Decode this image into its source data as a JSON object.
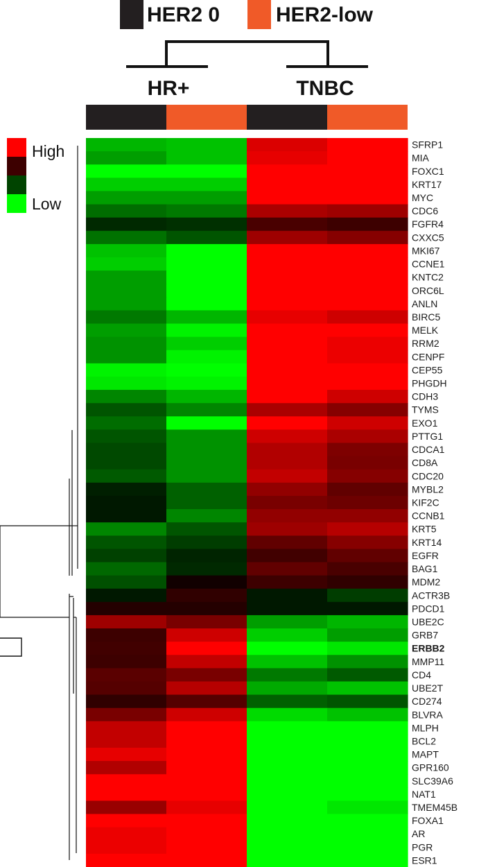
{
  "legend_top": {
    "items": [
      {
        "label": "HER2 0",
        "color": "#231f20"
      },
      {
        "label": "HER2-low",
        "color": "#f05a28"
      }
    ]
  },
  "group_labels": [
    "HR+",
    "TNBC"
  ],
  "color_key": {
    "high_label": "High",
    "low_label": "Low",
    "colors": [
      "#ff0000",
      "#3d0000",
      "#004400",
      "#00ff00"
    ]
  },
  "highlighted_gene": "ERBB2",
  "chart_data": {
    "type": "heatmap",
    "columns": [
      {
        "group": "HR+",
        "her2": "HER2 0"
      },
      {
        "group": "HR+",
        "her2": "HER2-low"
      },
      {
        "group": "TNBC",
        "her2": "HER2 0"
      },
      {
        "group": "TNBC",
        "her2": "HER2-low"
      }
    ],
    "rows": [
      "SFRP1",
      "MIA",
      "FOXC1",
      "KRT17",
      "MYC",
      "CDC6",
      "FGFR4",
      "CXXC5",
      "MKI67",
      "CCNE1",
      "KNTC2",
      "ORC6L",
      "ANLN",
      "BIRC5",
      "MELK",
      "RRM2",
      "CENPF",
      "CEP55",
      "PHGDH",
      "CDH3",
      "TYMS",
      "EXO1",
      "PTTG1",
      "CDCA1",
      "CD8A",
      "CDC20",
      "MYBL2",
      "KIF2C",
      "CCNB1",
      "KRT5",
      "KRT14",
      "EGFR",
      "BAG1",
      "MDM2",
      "ACTR3B",
      "PDCD1",
      "UBE2C",
      "GRB7",
      "ERBB2",
      "MMP11",
      "CD4",
      "UBE2T",
      "CD274",
      "BLVRA",
      "MLPH",
      "BCL2",
      "MAPT",
      "GPR160",
      "SLC39A6",
      "NAT1",
      "TMEM45B",
      "FOXA1",
      "AR",
      "PGR",
      "ESR1"
    ],
    "values": [
      [
        -0.7,
        -0.75,
        0.85,
        1
      ],
      [
        -0.6,
        -0.75,
        0.9,
        1
      ],
      [
        -1,
        -1,
        1,
        1
      ],
      [
        -0.8,
        -0.8,
        1,
        1
      ],
      [
        -0.6,
        -0.6,
        1,
        1
      ],
      [
        -0.4,
        -0.45,
        0.65,
        0.6
      ],
      [
        -0.12,
        -0.15,
        0.25,
        0.2
      ],
      [
        -0.42,
        -0.3,
        0.6,
        0.5
      ],
      [
        -0.75,
        -1,
        1,
        1
      ],
      [
        -0.8,
        -1,
        1,
        1
      ],
      [
        -0.6,
        -1,
        1,
        1
      ],
      [
        -0.6,
        -1,
        1,
        1
      ],
      [
        -0.6,
        -1,
        1,
        1
      ],
      [
        -0.45,
        -0.7,
        0.9,
        0.8
      ],
      [
        -0.6,
        -0.95,
        1,
        1
      ],
      [
        -0.55,
        -0.8,
        1,
        0.92
      ],
      [
        -0.55,
        -0.95,
        1,
        0.92
      ],
      [
        -0.95,
        -1,
        1,
        1
      ],
      [
        -0.9,
        -0.95,
        1,
        1
      ],
      [
        -0.5,
        -0.7,
        1,
        0.8
      ],
      [
        -0.3,
        -0.5,
        0.65,
        0.5
      ],
      [
        -0.4,
        -1,
        1,
        0.8
      ],
      [
        -0.3,
        -0.55,
        0.8,
        0.65
      ],
      [
        -0.25,
        -0.55,
        0.68,
        0.47
      ],
      [
        -0.25,
        -0.55,
        0.68,
        0.45
      ],
      [
        -0.32,
        -0.55,
        0.75,
        0.5
      ],
      [
        -0.08,
        -0.35,
        0.55,
        0.35
      ],
      [
        -0.05,
        -0.35,
        0.45,
        0.4
      ],
      [
        -0.05,
        -0.5,
        0.55,
        0.55
      ],
      [
        -0.5,
        -0.3,
        0.6,
        0.7
      ],
      [
        -0.3,
        -0.2,
        0.35,
        0.5
      ],
      [
        -0.22,
        -0.1,
        0.22,
        0.35
      ],
      [
        -0.38,
        -0.12,
        0.35,
        0.25
      ],
      [
        -0.28,
        0.02,
        0.2,
        0.15
      ],
      [
        -0.05,
        0.15,
        -0.05,
        -0.2
      ],
      [
        0.1,
        0.1,
        -0.05,
        -0.05
      ],
      [
        0.6,
        0.45,
        -0.6,
        -0.7
      ],
      [
        0.2,
        0.8,
        -0.8,
        -0.6
      ],
      [
        0.22,
        1,
        -1,
        -0.9
      ],
      [
        0.2,
        0.75,
        -0.75,
        -0.55
      ],
      [
        0.32,
        0.45,
        -0.45,
        -0.32
      ],
      [
        0.3,
        0.7,
        -0.65,
        -0.75
      ],
      [
        0.15,
        0.3,
        -0.35,
        -0.3
      ],
      [
        0.45,
        0.8,
        -0.85,
        -0.75
      ],
      [
        0.75,
        1,
        -1,
        -1
      ],
      [
        0.75,
        1,
        -1,
        -1
      ],
      [
        0.9,
        1,
        -1,
        -1
      ],
      [
        0.68,
        1,
        -1,
        -1
      ],
      [
        1,
        1,
        -1,
        -1
      ],
      [
        1,
        1,
        -1,
        -1
      ],
      [
        0.58,
        0.9,
        -1,
        -0.9
      ],
      [
        1,
        1,
        -1,
        -1
      ],
      [
        0.92,
        1,
        -1,
        -1
      ],
      [
        0.92,
        1,
        -1,
        -1
      ],
      [
        1,
        1,
        -1,
        -1
      ]
    ],
    "value_range": [
      -1,
      1
    ]
  }
}
